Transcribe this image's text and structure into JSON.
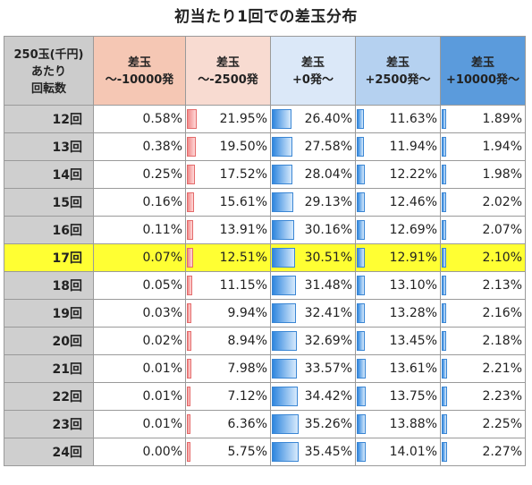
{
  "title": "初当たり1回での差玉分布",
  "header": {
    "row_label": [
      "250玉(千円)",
      "あたり",
      "回転数"
    ],
    "columns": [
      {
        "line1": "差玉",
        "line2": "～-10000発"
      },
      {
        "line1": "差玉",
        "line2": "～-2500発"
      },
      {
        "line1": "差玉",
        "line2": "+0発～"
      },
      {
        "line1": "差玉",
        "line2": "+2500発～"
      },
      {
        "line1": "差玉",
        "line2": "+10000発～"
      }
    ]
  },
  "highlight_row": "17回",
  "colors": {
    "highlight": "#ffff33",
    "negative_bar": "#f08a8a",
    "positive_bar": "#2f86de"
  },
  "rows": [
    {
      "label": "12回",
      "values": [
        "0.58%",
        "21.95%",
        "26.40%",
        "11.63%",
        "1.89%"
      ],
      "pct": [
        0.58,
        21.95,
        26.4,
        11.63,
        1.89
      ]
    },
    {
      "label": "13回",
      "values": [
        "0.38%",
        "19.50%",
        "27.58%",
        "11.94%",
        "1.94%"
      ],
      "pct": [
        0.38,
        19.5,
        27.58,
        11.94,
        1.94
      ]
    },
    {
      "label": "14回",
      "values": [
        "0.25%",
        "17.52%",
        "28.04%",
        "12.22%",
        "1.98%"
      ],
      "pct": [
        0.25,
        17.52,
        28.04,
        12.22,
        1.98
      ]
    },
    {
      "label": "15回",
      "values": [
        "0.16%",
        "15.61%",
        "29.13%",
        "12.46%",
        "2.02%"
      ],
      "pct": [
        0.16,
        15.61,
        29.13,
        12.46,
        2.02
      ]
    },
    {
      "label": "16回",
      "values": [
        "0.11%",
        "13.91%",
        "30.16%",
        "12.69%",
        "2.07%"
      ],
      "pct": [
        0.11,
        13.91,
        30.16,
        12.69,
        2.07
      ]
    },
    {
      "label": "17回",
      "values": [
        "0.07%",
        "12.51%",
        "30.51%",
        "12.91%",
        "2.10%"
      ],
      "pct": [
        0.07,
        12.51,
        30.51,
        12.91,
        2.1
      ]
    },
    {
      "label": "18回",
      "values": [
        "0.05%",
        "11.15%",
        "31.48%",
        "13.10%",
        "2.13%"
      ],
      "pct": [
        0.05,
        11.15,
        31.48,
        13.1,
        2.13
      ]
    },
    {
      "label": "19回",
      "values": [
        "0.03%",
        "9.94%",
        "32.41%",
        "13.28%",
        "2.16%"
      ],
      "pct": [
        0.03,
        9.94,
        32.41,
        13.28,
        2.16
      ]
    },
    {
      "label": "20回",
      "values": [
        "0.02%",
        "8.94%",
        "32.69%",
        "13.45%",
        "2.18%"
      ],
      "pct": [
        0.02,
        8.94,
        32.69,
        13.45,
        2.18
      ]
    },
    {
      "label": "21回",
      "values": [
        "0.01%",
        "7.98%",
        "33.57%",
        "13.61%",
        "2.21%"
      ],
      "pct": [
        0.01,
        7.98,
        33.57,
        13.61,
        2.21
      ]
    },
    {
      "label": "22回",
      "values": [
        "0.01%",
        "7.12%",
        "34.42%",
        "13.75%",
        "2.23%"
      ],
      "pct": [
        0.01,
        7.12,
        34.42,
        13.75,
        2.23
      ]
    },
    {
      "label": "23回",
      "values": [
        "0.01%",
        "6.36%",
        "35.26%",
        "13.88%",
        "2.25%"
      ],
      "pct": [
        0.01,
        6.36,
        35.26,
        13.88,
        2.25
      ]
    },
    {
      "label": "24回",
      "values": [
        "0.00%",
        "5.75%",
        "35.45%",
        "14.01%",
        "2.27%"
      ],
      "pct": [
        0.0,
        5.75,
        35.45,
        14.01,
        2.27
      ]
    }
  ]
}
